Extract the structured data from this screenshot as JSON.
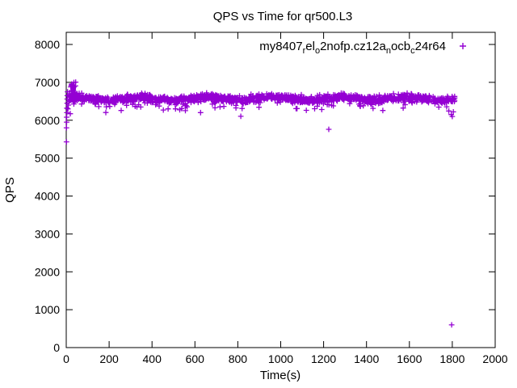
{
  "chart_data": {
    "type": "scatter",
    "title": "QPS vs Time for qr500.L3",
    "xlabel": "Time(s)",
    "ylabel": "QPS",
    "xlim": [
      0,
      2000
    ],
    "ylim": [
      0,
      8320
    ],
    "xticks": [
      0,
      200,
      400,
      600,
      800,
      1000,
      1200,
      1400,
      1600,
      1800,
      2000
    ],
    "yticks": [
      0,
      1000,
      2000,
      3000,
      4000,
      5000,
      6000,
      7000,
      8000
    ],
    "grid": false,
    "tick_style": "inward-mirrored",
    "legend_position": "top-right-inside",
    "series": [
      {
        "name_plain": "my8407_rel_o2nofp.cz12a_nocb_c24r64",
        "name_segments": [
          {
            "t": "my8407",
            "sub": false
          },
          {
            "t": "r",
            "sub": true
          },
          {
            "t": "el",
            "sub": false
          },
          {
            "t": "o",
            "sub": true
          },
          {
            "t": "2nofp.cz12a",
            "sub": false
          },
          {
            "t": "n",
            "sub": true
          },
          {
            "t": "ocb",
            "sub": false
          },
          {
            "t": "c",
            "sub": true
          },
          {
            "t": "24r64",
            "sub": false
          }
        ],
        "marker": "plus",
        "color": "#9400D3",
        "summary": {
          "description": "QPS steady around 6550-6650 from t=0 to t=1810s, startup ramp from 5430, brief peak near 7000 around t=25-45s, sporadic dips to 6000-6250, isolated low points near (1224, 5760) and final point (1797, 600)",
          "steady_state_mean_qps": 6570,
          "steady_state_range_qps": [
            6300,
            6900
          ],
          "time_range_s": [
            0,
            1810
          ]
        },
        "points_explicit": [
          [
            1,
            5430
          ],
          [
            1,
            5800
          ],
          [
            2,
            5950
          ],
          [
            2,
            6080
          ],
          [
            3,
            6200
          ],
          [
            3,
            6320
          ],
          [
            4,
            6450
          ],
          [
            4,
            6560
          ],
          [
            5,
            6650
          ],
          [
            6,
            6750
          ],
          [
            8,
            6300
          ],
          [
            10,
            6400
          ],
          [
            12,
            6500
          ],
          [
            14,
            6620
          ],
          [
            16,
            6700
          ],
          [
            1795,
            6150
          ],
          [
            1800,
            6100
          ],
          [
            1805,
            6220
          ],
          [
            1224,
            5760
          ],
          [
            1797,
            600
          ]
        ],
        "startup_peak_cluster": {
          "count": 26,
          "x_min": 20,
          "x_max": 48,
          "y_min": 6700,
          "y_max": 7020
        },
        "band_generator": {
          "seed": 1337,
          "count": 1500,
          "x_min": 14,
          "x_max": 1812,
          "y_mean": 6570,
          "y_std": 95,
          "wave_amp": 35,
          "wave_period": 310,
          "wave_phase": 0.7,
          "dip_prob": 0.045,
          "dip_min": 150,
          "dip_max": 480,
          "y_cap": 6960,
          "y_floor": 5960
        }
      }
    ]
  },
  "colors": {
    "marker": "#9400D3",
    "axis": "#000000",
    "background": "#ffffff"
  }
}
